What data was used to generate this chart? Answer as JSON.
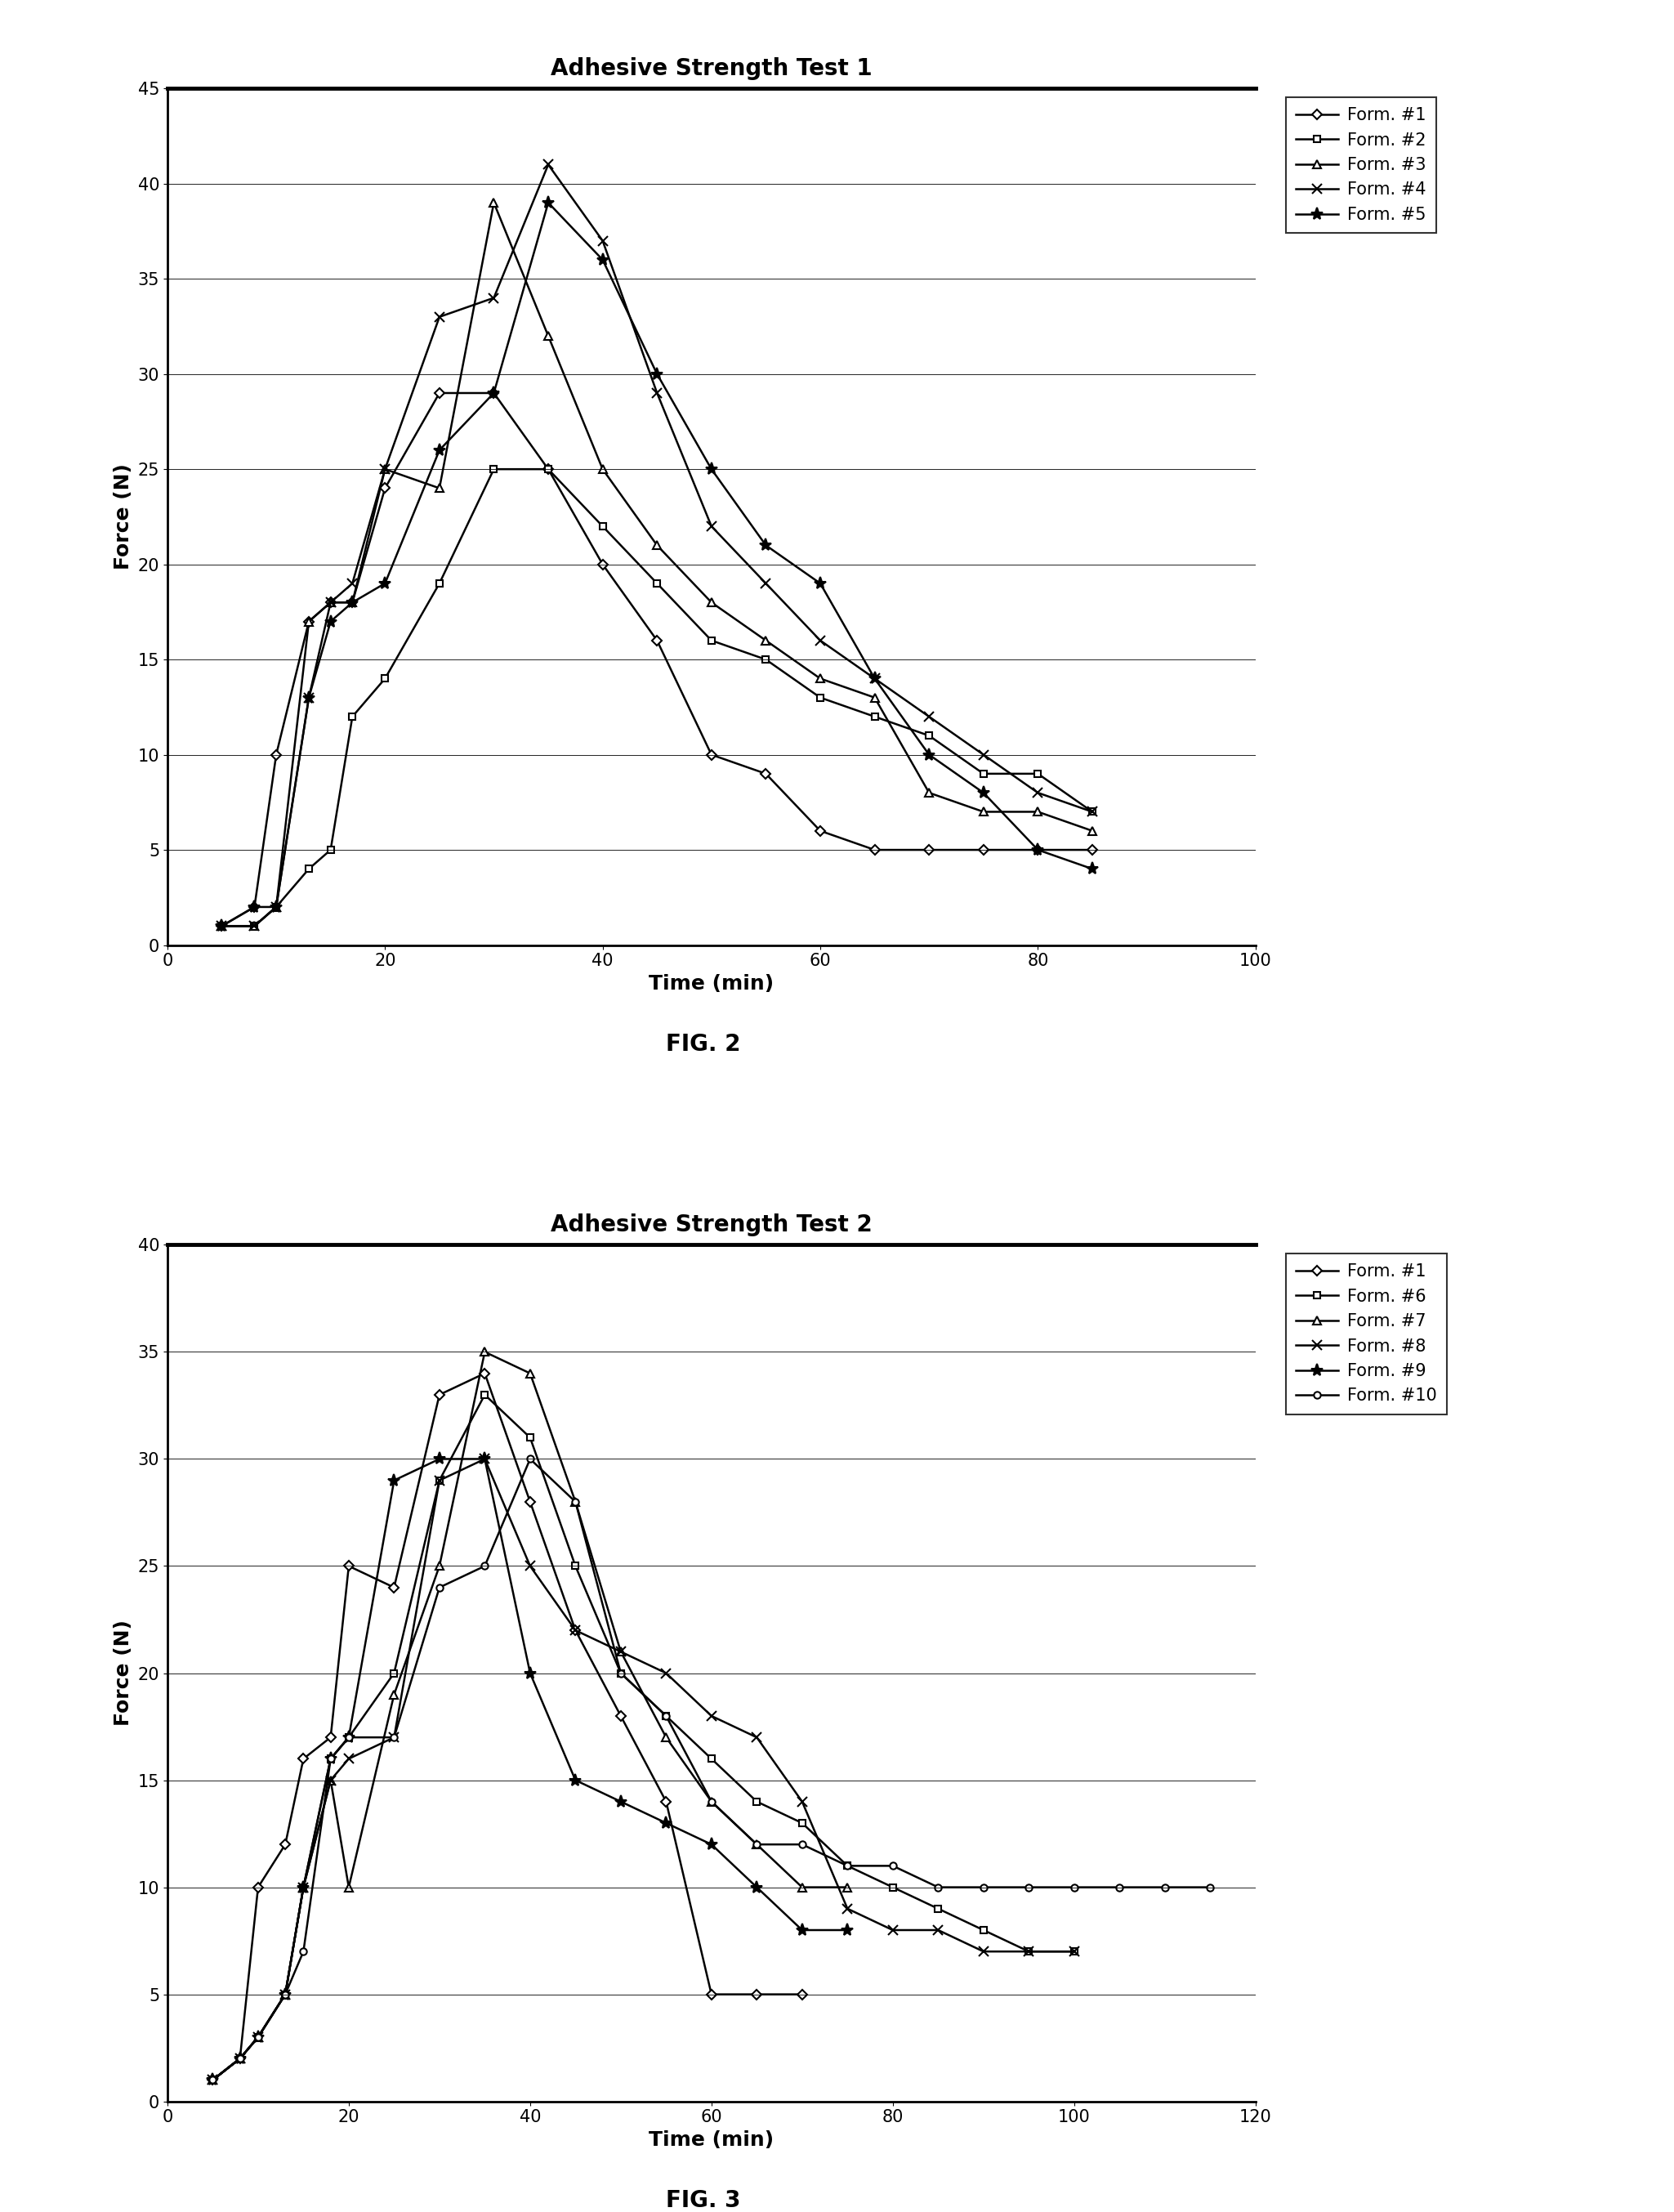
{
  "fig1": {
    "title": "Adhesive Strength Test 1",
    "xlabel": "Time (min)",
    "ylabel": "Force (N)",
    "xlim": [
      0,
      100
    ],
    "ylim": [
      0,
      45
    ],
    "xticks": [
      0,
      20,
      40,
      60,
      80,
      100
    ],
    "yticks": [
      0,
      5,
      10,
      15,
      20,
      25,
      30,
      35,
      40,
      45
    ],
    "figcaption": "FIG. 2",
    "series": [
      {
        "label": "Form. #1",
        "marker": "D",
        "markersize": 6,
        "color": "#000000",
        "x": [
          5,
          8,
          10,
          13,
          15,
          17,
          20,
          25,
          30,
          35,
          40,
          45,
          50,
          55,
          60,
          65,
          70,
          75,
          80,
          85
        ],
        "y": [
          1,
          2,
          10,
          17,
          18,
          18,
          24,
          29,
          29,
          25,
          20,
          16,
          10,
          9,
          6,
          5,
          5,
          5,
          5,
          5
        ]
      },
      {
        "label": "Form. #2",
        "marker": "s",
        "markersize": 6,
        "color": "#000000",
        "x": [
          5,
          8,
          10,
          13,
          15,
          17,
          20,
          25,
          30,
          35,
          40,
          45,
          50,
          55,
          60,
          65,
          70,
          75,
          80,
          85
        ],
        "y": [
          1,
          1,
          2,
          4,
          5,
          12,
          14,
          19,
          25,
          25,
          22,
          19,
          16,
          15,
          13,
          12,
          11,
          9,
          9,
          7
        ]
      },
      {
        "label": "Form. #3",
        "marker": "^",
        "markersize": 7,
        "color": "#000000",
        "x": [
          5,
          8,
          10,
          13,
          15,
          17,
          20,
          25,
          30,
          35,
          40,
          45,
          50,
          55,
          60,
          65,
          70,
          75,
          80,
          85
        ],
        "y": [
          1,
          1,
          2,
          17,
          18,
          18,
          25,
          24,
          39,
          32,
          25,
          21,
          18,
          16,
          14,
          13,
          8,
          7,
          7,
          6
        ]
      },
      {
        "label": "Form. #4",
        "marker": "x",
        "markersize": 8,
        "color": "#000000",
        "x": [
          5,
          8,
          10,
          13,
          15,
          17,
          20,
          25,
          30,
          35,
          40,
          45,
          50,
          55,
          60,
          65,
          70,
          75,
          80,
          85
        ],
        "y": [
          1,
          1,
          2,
          13,
          18,
          19,
          25,
          33,
          34,
          41,
          37,
          29,
          22,
          19,
          16,
          14,
          12,
          10,
          8,
          7
        ]
      },
      {
        "label": "Form. #5",
        "marker": "*",
        "markersize": 11,
        "color": "#000000",
        "x": [
          5,
          8,
          10,
          13,
          15,
          17,
          20,
          25,
          30,
          35,
          40,
          45,
          50,
          55,
          60,
          65,
          70,
          75,
          80,
          85
        ],
        "y": [
          1,
          2,
          2,
          13,
          17,
          18,
          19,
          26,
          29,
          39,
          36,
          30,
          25,
          21,
          19,
          14,
          10,
          8,
          5,
          4
        ]
      }
    ]
  },
  "fig2": {
    "title": "Adhesive Strength Test 2",
    "xlabel": "Time (min)",
    "ylabel": "Force (N)",
    "xlim": [
      0,
      120
    ],
    "ylim": [
      0,
      40
    ],
    "xticks": [
      0,
      20,
      40,
      60,
      80,
      100,
      120
    ],
    "yticks": [
      0,
      5,
      10,
      15,
      20,
      25,
      30,
      35,
      40
    ],
    "figcaption": "FIG. 3",
    "series": [
      {
        "label": "Form. #1",
        "marker": "D",
        "markersize": 6,
        "color": "#000000",
        "x": [
          5,
          8,
          10,
          13,
          15,
          18,
          20,
          25,
          30,
          35,
          40,
          45,
          50,
          55,
          60,
          65,
          70
        ],
        "y": [
          1,
          2,
          10,
          12,
          16,
          17,
          25,
          24,
          33,
          34,
          28,
          22,
          18,
          14,
          5,
          5,
          5
        ]
      },
      {
        "label": "Form. #6",
        "marker": "s",
        "markersize": 6,
        "color": "#000000",
        "x": [
          5,
          8,
          10,
          13,
          15,
          18,
          20,
          25,
          30,
          35,
          40,
          45,
          50,
          55,
          60,
          65,
          70,
          75,
          80,
          85,
          90,
          95,
          100
        ],
        "y": [
          1,
          2,
          3,
          5,
          10,
          16,
          17,
          20,
          29,
          33,
          31,
          25,
          20,
          18,
          16,
          14,
          13,
          11,
          10,
          9,
          8,
          7,
          7
        ]
      },
      {
        "label": "Form. #7",
        "marker": "^",
        "markersize": 7,
        "color": "#000000",
        "x": [
          5,
          8,
          10,
          13,
          15,
          18,
          20,
          25,
          30,
          35,
          40,
          45,
          50,
          55,
          60,
          65,
          70,
          75
        ],
        "y": [
          1,
          2,
          3,
          5,
          10,
          15,
          10,
          19,
          25,
          35,
          34,
          28,
          21,
          17,
          14,
          12,
          10,
          10
        ]
      },
      {
        "label": "Form. #8",
        "marker": "x",
        "markersize": 8,
        "color": "#000000",
        "x": [
          5,
          8,
          10,
          13,
          15,
          18,
          20,
          25,
          30,
          35,
          40,
          45,
          50,
          55,
          60,
          65,
          70,
          75,
          80,
          85,
          90,
          95,
          100
        ],
        "y": [
          1,
          2,
          3,
          5,
          10,
          15,
          16,
          17,
          29,
          30,
          25,
          22,
          21,
          20,
          18,
          17,
          14,
          9,
          8,
          8,
          7,
          7,
          7
        ]
      },
      {
        "label": "Form. #9",
        "marker": "*",
        "markersize": 11,
        "color": "#000000",
        "x": [
          5,
          8,
          10,
          13,
          15,
          18,
          20,
          25,
          30,
          35,
          40,
          45,
          50,
          55,
          60,
          65,
          70,
          75
        ],
        "y": [
          1,
          2,
          3,
          5,
          10,
          16,
          17,
          29,
          30,
          30,
          20,
          15,
          14,
          13,
          12,
          10,
          8,
          8
        ]
      },
      {
        "label": "Form. #10",
        "marker": "o",
        "markersize": 6,
        "color": "#000000",
        "x": [
          5,
          8,
          10,
          13,
          15,
          18,
          20,
          25,
          30,
          35,
          40,
          45,
          50,
          55,
          60,
          65,
          70,
          75,
          80,
          85,
          90,
          95,
          100,
          105,
          110,
          115
        ],
        "y": [
          1,
          2,
          3,
          5,
          7,
          16,
          17,
          17,
          24,
          25,
          30,
          28,
          20,
          18,
          14,
          12,
          12,
          11,
          11,
          10,
          10,
          10,
          10,
          10,
          10,
          10
        ]
      }
    ]
  },
  "background_color": "#ffffff",
  "title_fontsize": 20,
  "label_fontsize": 18,
  "tick_fontsize": 15,
  "legend_fontsize": 15,
  "caption_fontsize": 20
}
